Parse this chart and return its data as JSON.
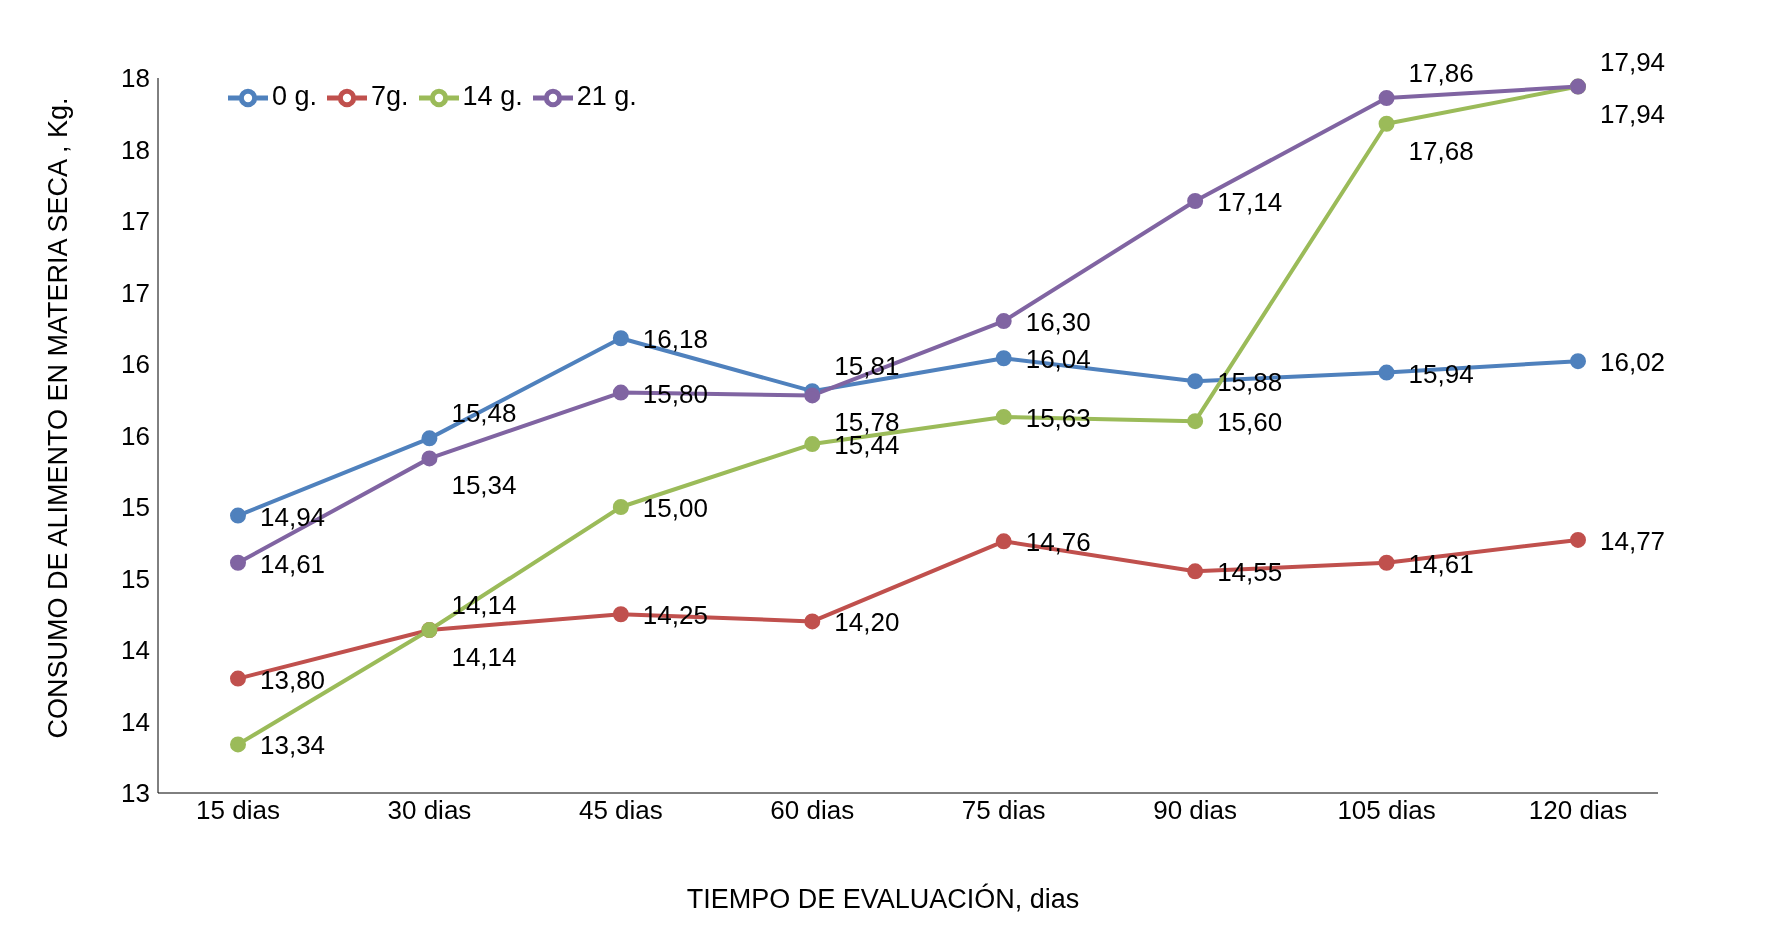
{
  "chart_data": {
    "type": "line",
    "xlabel": "TIEMPO DE EVALUACIÓN, dias",
    "ylabel": "CONSUMO DE ALIMENTO EN MATERIA SECA , Kg.",
    "categories": [
      "15 dias",
      "30  dias",
      "45 dias",
      "60 dias",
      "75 dias",
      "90 dias",
      "105 dias",
      "120 dias"
    ],
    "ylim": [
      13,
      18
    ],
    "yticks": [
      13,
      {
        "value": 13.5,
        "label": "14"
      },
      14,
      {
        "value": 14.5,
        "label": "15"
      },
      15,
      {
        "value": 15.5,
        "label": "16"
      },
      16,
      {
        "value": 16.5,
        "label": "17"
      },
      17,
      {
        "value": 17.5,
        "label": "18"
      },
      18
    ],
    "series": [
      {
        "name": "0 g.",
        "color": "#4f81bd",
        "values": [
          14.94,
          15.48,
          16.18,
          15.81,
          16.04,
          15.88,
          15.94,
          16.02
        ],
        "value_labels": [
          "14,94",
          "15,48",
          "16,18",
          "15,81",
          "16,04",
          "15,88",
          "15,94",
          "16,02"
        ]
      },
      {
        "name": "7g.",
        "color": "#c0504d",
        "values": [
          13.8,
          14.14,
          14.25,
          14.2,
          14.76,
          14.55,
          14.61,
          14.77
        ],
        "value_labels": [
          "13,80",
          "14,14",
          "14,25",
          "14,20",
          "14,76",
          "14,55",
          "14,61",
          "14,77"
        ]
      },
      {
        "name": "14 g.",
        "color": "#9bbb59",
        "values": [
          13.34,
          14.14,
          15.0,
          15.44,
          15.63,
          15.6,
          17.68,
          17.94
        ],
        "value_labels": [
          "13,34",
          "14,14",
          "15,00",
          "15,44",
          "15,63",
          "15,60",
          "17,68",
          "17,94"
        ]
      },
      {
        "name": "21 g.",
        "color": "#8064a2",
        "values": [
          14.61,
          15.34,
          15.8,
          15.78,
          16.3,
          17.14,
          17.86,
          17.94
        ],
        "value_labels": [
          "14,61",
          "15,34",
          "15,80",
          "15,78",
          "16,30",
          "17,14",
          "17,86",
          "17,94"
        ]
      }
    ],
    "grid": false,
    "legend": "top left",
    "marker": "circle",
    "line_style": "solid"
  }
}
